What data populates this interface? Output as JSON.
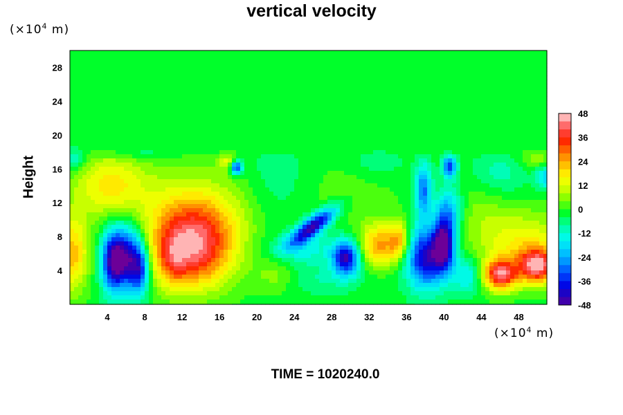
{
  "chart_data": {
    "type": "heatmap",
    "title": "vertical velocity",
    "ylabel": "Height",
    "xlabel": "",
    "x_unit": "(×10⁴ m)",
    "y_unit": "(×10⁴ m)",
    "unit_base": "(×10",
    "unit_exp": "4",
    "unit_tail": " m)",
    "xlim": [
      0,
      51
    ],
    "ylim": [
      0,
      30
    ],
    "x_ticks": [
      "4",
      "8",
      "12",
      "16",
      "20",
      "24",
      "28",
      "32",
      "36",
      "40",
      "44",
      "48"
    ],
    "y_ticks": [
      "4",
      "8",
      "12",
      "16",
      "20",
      "24",
      "28"
    ],
    "colorbar": {
      "min": -48,
      "max": 48,
      "step": 4,
      "ticks": [
        "48",
        "36",
        "24",
        "12",
        "0",
        "-12",
        "-24",
        "-36",
        "-48"
      ]
    },
    "background_value": 0,
    "features": [
      {
        "x": 13,
        "y": 6.5,
        "sx": 3.2,
        "sy": 3.2,
        "v": 44
      },
      {
        "x": 11,
        "y": 5,
        "sx": 1.0,
        "sy": 2.2,
        "v": 10
      },
      {
        "x": 13.5,
        "y": 10.5,
        "sx": 4,
        "sy": 2.5,
        "v": 14
      },
      {
        "x": 12,
        "y": 14.5,
        "sx": 6,
        "sy": 2.5,
        "v": 6
      },
      {
        "x": 6,
        "y": 5.5,
        "sx": 1.3,
        "sy": 2.6,
        "v": -46
      },
      {
        "x": 4.5,
        "y": 5,
        "sx": 0.8,
        "sy": 2.5,
        "v": -28
      },
      {
        "x": 7.5,
        "y": 4,
        "sx": 0.7,
        "sy": 2.0,
        "v": -26
      },
      {
        "x": 4.5,
        "y": 14,
        "sx": 2.5,
        "sy": 2.5,
        "v": 12
      },
      {
        "x": 17.8,
        "y": 16.2,
        "sx": 0.45,
        "sy": 0.6,
        "v": -40
      },
      {
        "x": 17,
        "y": 17,
        "sx": 0.8,
        "sy": 0.8,
        "v": 14
      },
      {
        "x": 0.3,
        "y": 6,
        "sx": 1.2,
        "sy": 3.2,
        "v": 24
      },
      {
        "x": 3,
        "y": 14,
        "sx": 3,
        "sy": 3,
        "v": 6
      },
      {
        "x": 26,
        "y": 9.2,
        "sx": 2.2,
        "sy": 0.7,
        "v": -44,
        "rot": -0.72
      },
      {
        "x": 29.5,
        "y": 5.5,
        "sx": 1.0,
        "sy": 1.4,
        "v": -42
      },
      {
        "x": 25,
        "y": 6.5,
        "sx": 2.5,
        "sy": 1.3,
        "v": -12
      },
      {
        "x": 33,
        "y": 7,
        "sx": 1.4,
        "sy": 1.8,
        "v": 26
      },
      {
        "x": 35.2,
        "y": 7.5,
        "sx": 0.8,
        "sy": 1.6,
        "v": 22
      },
      {
        "x": 38,
        "y": 5.5,
        "sx": 1.4,
        "sy": 2.5,
        "v": -40
      },
      {
        "x": 40,
        "y": 7,
        "sx": 0.8,
        "sy": 2.2,
        "v": -44
      },
      {
        "x": 37.8,
        "y": 13.5,
        "sx": 0.6,
        "sy": 2.2,
        "v": -28
      },
      {
        "x": 40.6,
        "y": 16.3,
        "sx": 0.5,
        "sy": 0.9,
        "v": -34
      },
      {
        "x": 40.5,
        "y": 11,
        "sx": 1.0,
        "sy": 2.0,
        "v": -20
      },
      {
        "x": 42.5,
        "y": 3.5,
        "sx": 1.2,
        "sy": 1.5,
        "v": -16
      },
      {
        "x": 46,
        "y": 3.5,
        "sx": 1.3,
        "sy": 1.3,
        "v": 40
      },
      {
        "x": 50,
        "y": 4.5,
        "sx": 1.4,
        "sy": 1.4,
        "v": 40
      },
      {
        "x": 48.5,
        "y": 7,
        "sx": 3.5,
        "sy": 2.8,
        "v": 18
      },
      {
        "x": 51,
        "y": 15,
        "sx": 0.8,
        "sy": 1.0,
        "v": -18
      },
      {
        "x": 50,
        "y": 17.5,
        "sx": 1.5,
        "sy": 1.0,
        "v": 10
      },
      {
        "x": 22,
        "y": 15,
        "sx": 2.5,
        "sy": 3.5,
        "v": -6
      },
      {
        "x": 30,
        "y": 13,
        "sx": 4,
        "sy": 3,
        "v": 4
      },
      {
        "x": 8,
        "y": 18.5,
        "sx": 2,
        "sy": 0.8,
        "v": -10
      },
      {
        "x": 0.5,
        "y": 17.5,
        "sx": 0.8,
        "sy": 1.2,
        "v": -16
      },
      {
        "x": 44,
        "y": 11,
        "sx": 2,
        "sy": 2.5,
        "v": 6
      },
      {
        "x": 46,
        "y": 15.5,
        "sx": 2,
        "sy": 2,
        "v": -8
      },
      {
        "x": 27,
        "y": 3,
        "sx": 3,
        "sy": 1.2,
        "v": -6
      },
      {
        "x": 22,
        "y": 3.5,
        "sx": 1.5,
        "sy": 1.5,
        "v": 8
      },
      {
        "x": 33,
        "y": 17,
        "sx": 2,
        "sy": 1.5,
        "v": -6
      }
    ]
  },
  "footer": {
    "time_label": "TIME = 1020240.0"
  }
}
